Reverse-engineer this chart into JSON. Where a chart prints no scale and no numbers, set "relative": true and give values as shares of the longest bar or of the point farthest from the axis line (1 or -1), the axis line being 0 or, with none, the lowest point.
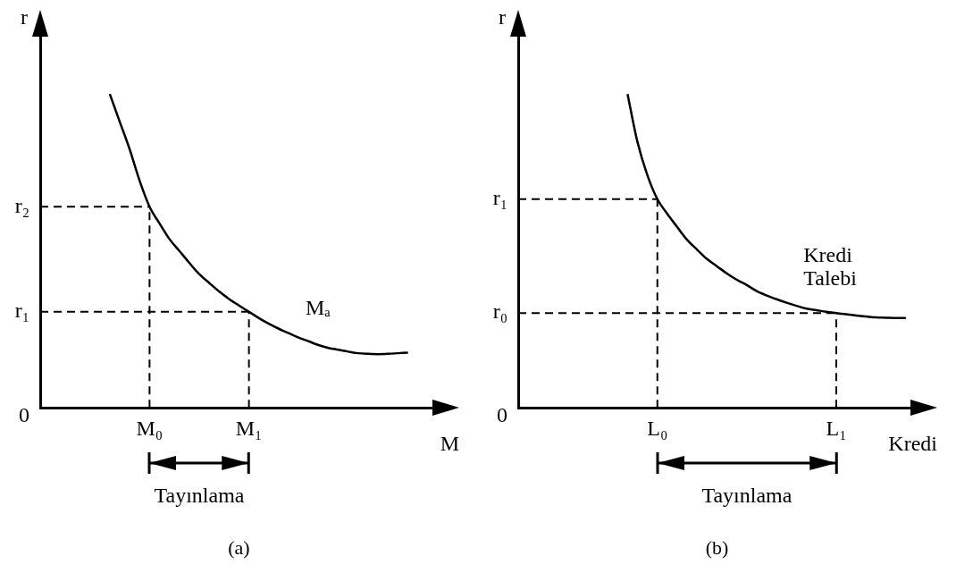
{
  "chart_data": [
    {
      "type": "line",
      "title": "(a)",
      "xlabel": "M",
      "ylabel": "r",
      "relative": true,
      "categories": [
        null,
        null,
        null,
        null,
        null,
        null,
        null,
        null,
        null,
        null,
        null,
        "M₀",
        null,
        null,
        null,
        null,
        null,
        null,
        null,
        null,
        null,
        "M₁",
        null,
        null,
        null,
        null,
        null,
        null,
        null,
        null,
        null,
        null,
        null,
        null,
        null,
        null,
        null,
        null,
        null,
        null,
        null
      ],
      "annotations": [
        "0",
        "Tayınlama"
      ],
      "ref_lines": [
        {
          "axis": "y",
          "value": 0.641,
          "label": "r₂",
          "color": "#000000",
          "line_style": "dashed"
        },
        {
          "axis": "y",
          "value": 0.306,
          "label": "r₁",
          "color": "#000000",
          "line_style": "dashed"
        },
        {
          "axis": "x",
          "value": "M₀",
          "color": "#000000",
          "line_style": "dashed"
        },
        {
          "axis": "x",
          "value": "M₁",
          "color": "#000000",
          "line_style": "dashed"
        }
      ],
      "grid": false,
      "legend": false,
      "marker": "none",
      "series": [
        {
          "name": "Mₐ",
          "color": "#000000",
          "values": [
            null,
            null,
            null,
            null,
            null,
            null,
            null,
            1,
            0.912,
            0.824,
            0.724,
            0.641,
            0.588,
            0.538,
            0.5,
            0.462,
            0.426,
            0.398,
            0.371,
            0.347,
            0.326,
            0.306,
            0.286,
            0.268,
            0.252,
            0.238,
            0.224,
            0.212,
            0.2,
            0.191,
            0.185,
            0.179,
            0.174,
            0.172,
            0.171,
            0.172,
            0.174,
            0.176,
            null,
            null,
            null
          ]
        }
      ]
    },
    {
      "type": "line",
      "title": "(b)",
      "xlabel": "Kredi",
      "ylabel": "r",
      "relative": true,
      "categories": [
        null,
        null,
        null,
        null,
        null,
        null,
        null,
        null,
        null,
        null,
        null,
        null,
        null,
        null,
        "L₀",
        null,
        null,
        null,
        null,
        null,
        null,
        null,
        null,
        null,
        null,
        null,
        null,
        null,
        null,
        null,
        null,
        null,
        "L₁",
        null,
        null,
        null,
        null,
        null,
        null,
        null,
        null
      ],
      "annotations": [
        "0",
        "Tayınlama"
      ],
      "ref_lines": [
        {
          "axis": "y",
          "value": 0.665,
          "label": "r₁",
          "color": "#000000",
          "line_style": "dashed"
        },
        {
          "axis": "y",
          "value": 0.302,
          "label": "r₀",
          "color": "#000000",
          "line_style": "dashed"
        },
        {
          "axis": "x",
          "value": "L₀",
          "color": "#000000",
          "line_style": "dashed"
        },
        {
          "axis": "x",
          "value": "L₁",
          "color": "#000000",
          "line_style": "dashed"
        }
      ],
      "grid": false,
      "legend": false,
      "marker": "none",
      "series": [
        {
          "name": "Kredi Talebi",
          "color": "#000000",
          "values": [
            null,
            null,
            null,
            null,
            null,
            null,
            null,
            null,
            null,
            null,
            null,
            1,
            0.847,
            0.741,
            0.665,
            0.618,
            0.576,
            0.535,
            0.504,
            0.474,
            0.451,
            0.428,
            0.408,
            0.391,
            0.372,
            0.358,
            0.346,
            0.335,
            0.325,
            0.316,
            0.311,
            0.306,
            0.302,
            0.298,
            0.294,
            0.291,
            0.288,
            0.287,
            0.286,
            0.286,
            null
          ]
        }
      ]
    }
  ]
}
